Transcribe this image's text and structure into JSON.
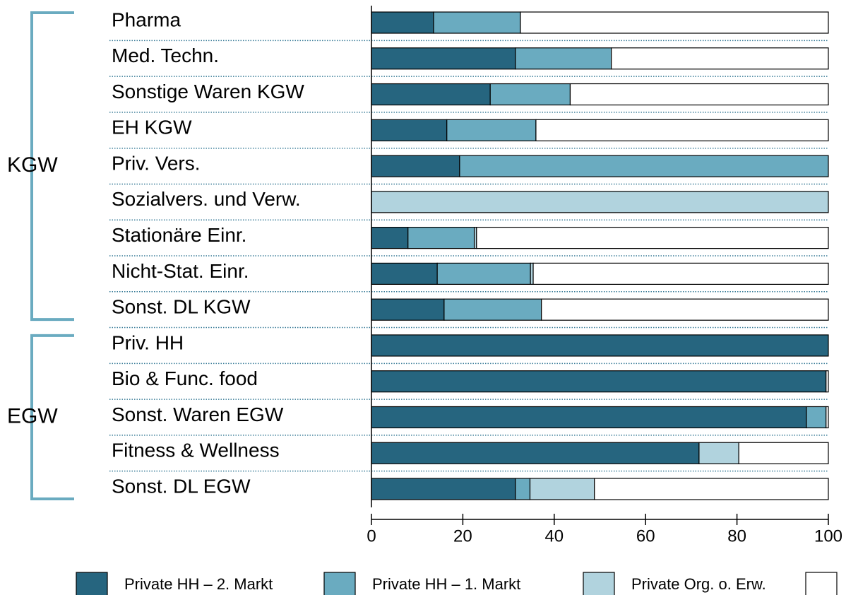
{
  "chart_data": {
    "type": "stacked-barh",
    "categories": [
      "Pharma",
      "Med. Techn.",
      "Sonstige Waren KGW",
      "EH KGW",
      "Priv. Vers.",
      "Sozialvers. und Verw.",
      "Stationäre Einr.",
      "Nicht-Stat. Einr.",
      "Sonst. DL KGW",
      "Priv. HH",
      "Bio & Func. food",
      "Sonst. Waren EGW",
      "Fitness & Wellness",
      "Sonst. DL EGW"
    ],
    "groups": [
      {
        "name": "KGW",
        "count": 9
      },
      {
        "name": "EGW",
        "count": 5
      }
    ],
    "series": [
      {
        "name": "Private HH – 2. Markt",
        "color": "#26657f",
        "values": [
          13.6,
          31.5,
          26.0,
          16.5,
          19.3,
          0,
          8.0,
          14.4,
          15.9,
          100,
          99.5,
          95.2,
          71.7,
          31.5
        ]
      },
      {
        "name": "Private HH – 1. Markt",
        "color": "#6aabc0",
        "values": [
          19.0,
          21.0,
          17.5,
          19.5,
          80.7,
          0,
          14.5,
          20.4,
          21.3,
          0,
          0,
          4.3,
          0,
          3.2
        ]
      },
      {
        "name": "Private Org. o. Erw.",
        "color": "#b1d3de",
        "values": [
          0,
          0,
          0,
          0,
          0,
          100,
          0.5,
          0.6,
          0,
          0,
          0,
          0,
          8.7,
          14.1
        ]
      },
      {
        "color": "#ffffff",
        "values": [
          67.4,
          47.5,
          56.5,
          64.0,
          0,
          0,
          77.0,
          64.6,
          62.8,
          0,
          0.5,
          0.5,
          19.6,
          51.2
        ]
      }
    ],
    "xlim": [
      0,
      100
    ],
    "xticks": [
      0,
      20,
      40,
      60,
      80,
      100
    ],
    "group_color": "#6aabc0",
    "group_label_color": "#3a7c98"
  }
}
